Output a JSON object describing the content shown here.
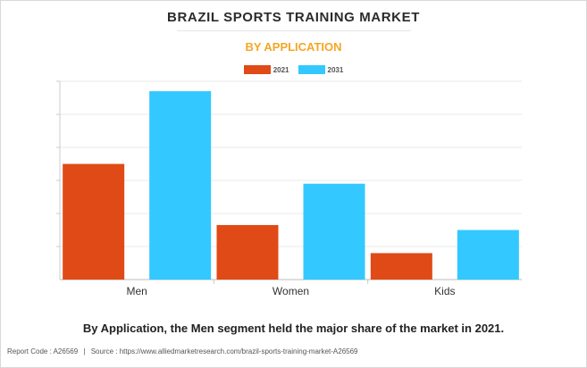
{
  "header": {
    "title": "BRAZIL SPORTS TRAINING MARKET",
    "subtitle": "BY APPLICATION"
  },
  "colors": {
    "series_2021": "#e04a16",
    "series_2031": "#33c8ff",
    "subtitle": "#f5a623"
  },
  "chart_data": {
    "type": "bar",
    "categories": [
      "Men",
      "Women",
      "Kids"
    ],
    "series": [
      {
        "name": "2021",
        "values": [
          3.5,
          1.65,
          0.8
        ]
      },
      {
        "name": "2031",
        "values": [
          5.7,
          2.9,
          1.5
        ]
      }
    ],
    "ylim": [
      0,
      6.0
    ],
    "grid": true,
    "legend": "top-center",
    "y_tick_labels_shown": false
  },
  "caption": "By Application, the Men segment held the major share of the market in 2021.",
  "footer": {
    "report_code": "Report Code : A26569",
    "separator": "|",
    "source": "Source : https://www.alliedmarketresearch.com/brazil-sports-training-market-A26569"
  }
}
